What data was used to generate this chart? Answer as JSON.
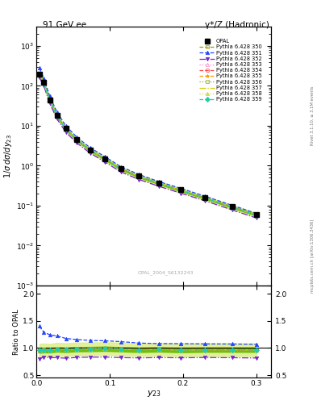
{
  "title_left": "91 GeV ee",
  "title_right": "γ*/Z (Hadronic)",
  "xlabel": "y_{23}",
  "ylabel_main": "1/σ dσ/dy_{23}",
  "ylabel_ratio": "Ratio to OPAL",
  "watermark": "OPAL_2004_S6132243",
  "right_label_top": "Rivet 3.1.10, ≥ 3.1M events",
  "right_label_bot": "mcplots.cern.ch [arXiv:1306.3436]",
  "x_data": [
    0.004,
    0.01,
    0.018,
    0.028,
    0.04,
    0.055,
    0.073,
    0.093,
    0.115,
    0.14,
    0.167,
    0.197,
    0.23,
    0.267,
    0.3
  ],
  "opal_y": [
    200,
    120,
    45,
    18,
    8.5,
    4.5,
    2.5,
    1.5,
    0.85,
    0.55,
    0.37,
    0.25,
    0.16,
    0.095,
    0.06
  ],
  "opal_yerr": [
    20,
    12,
    4,
    1.5,
    0.7,
    0.3,
    0.2,
    0.12,
    0.07,
    0.04,
    0.03,
    0.02,
    0.01,
    0.008,
    0.005
  ],
  "py350_y": [
    190,
    115,
    43,
    17.5,
    8.2,
    4.4,
    2.45,
    1.48,
    0.83,
    0.53,
    0.36,
    0.24,
    0.155,
    0.092,
    0.058
  ],
  "py351_y": [
    280,
    155,
    56,
    22.0,
    10.0,
    5.2,
    2.85,
    1.7,
    0.95,
    0.6,
    0.4,
    0.27,
    0.172,
    0.102,
    0.064
  ],
  "py352_y": [
    160,
    100,
    37,
    14.8,
    6.9,
    3.72,
    2.08,
    1.25,
    0.7,
    0.45,
    0.305,
    0.205,
    0.132,
    0.078,
    0.049
  ],
  "py353_y": [
    193,
    117,
    43.5,
    17.7,
    8.28,
    4.43,
    2.47,
    1.485,
    0.837,
    0.533,
    0.361,
    0.242,
    0.155,
    0.092,
    0.058
  ],
  "py354_y": [
    193,
    117,
    43.5,
    17.7,
    8.28,
    4.43,
    2.47,
    1.485,
    0.837,
    0.533,
    0.361,
    0.242,
    0.155,
    0.092,
    0.058
  ],
  "py355_y": [
    193,
    117,
    43.5,
    17.7,
    8.28,
    4.43,
    2.47,
    1.485,
    0.837,
    0.533,
    0.361,
    0.242,
    0.155,
    0.092,
    0.058
  ],
  "py356_y": [
    193,
    117,
    43.5,
    17.7,
    8.28,
    4.43,
    2.47,
    1.485,
    0.837,
    0.533,
    0.361,
    0.242,
    0.155,
    0.092,
    0.058
  ],
  "py357_y": [
    192,
    116,
    43.2,
    17.6,
    8.25,
    4.42,
    2.46,
    1.48,
    0.835,
    0.532,
    0.36,
    0.241,
    0.155,
    0.092,
    0.058
  ],
  "py358_y": [
    192,
    116,
    43.2,
    17.6,
    8.25,
    4.42,
    2.46,
    1.48,
    0.835,
    0.532,
    0.36,
    0.241,
    0.155,
    0.092,
    0.058
  ],
  "py359_y": [
    192,
    116,
    43.2,
    17.6,
    8.25,
    4.42,
    2.46,
    1.48,
    0.835,
    0.532,
    0.36,
    0.241,
    0.155,
    0.092,
    0.058
  ],
  "band_inner_color": "#66bb00",
  "band_outer_color": "#ddee88",
  "col_py350": "#999900",
  "col_py351": "#2244ff",
  "col_py352": "#7722cc",
  "col_py353": "#ff88cc",
  "col_py354": "#ff4444",
  "col_py355": "#ff9900",
  "col_py356": "#88aa22",
  "col_py357": "#ddcc00",
  "col_py358": "#ccdd44",
  "col_py359": "#22ccaa",
  "xlim": [
    0.0,
    0.32
  ],
  "ylim_main": [
    0.001,
    3000.0
  ],
  "ylim_ratio": [
    0.45,
    2.15
  ],
  "yticks_ratio": [
    0.5,
    1.0,
    1.5,
    2.0
  ]
}
